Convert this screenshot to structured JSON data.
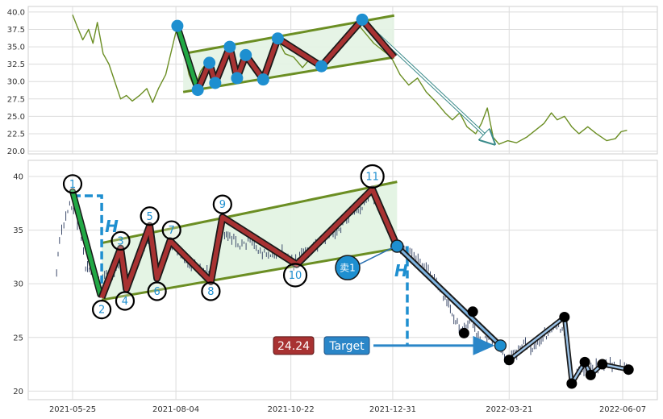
{
  "chart_data": [
    {
      "type": "line",
      "panel": "top",
      "ylim": [
        19.6,
        40.8
      ],
      "yticks": [
        "20.0",
        "22.5",
        "25.0",
        "27.5",
        "30.0",
        "32.5",
        "35.0",
        "37.5",
        "40.0"
      ],
      "ytick_values": [
        20.0,
        22.5,
        25.0,
        27.5,
        30.0,
        32.5,
        35.0,
        37.5,
        40.0
      ],
      "grid": true,
      "line_color": "#6b8e23",
      "price_series": [
        {
          "x": "2021-05-25",
          "y": 39.6
        },
        {
          "x": "2021-05-28",
          "y": 38.0
        },
        {
          "x": "2021-06-01",
          "y": 36.0
        },
        {
          "x": "2021-06-05",
          "y": 37.5
        },
        {
          "x": "2021-06-08",
          "y": 35.5
        },
        {
          "x": "2021-06-11",
          "y": 38.5
        },
        {
          "x": "2021-06-15",
          "y": 34.0
        },
        {
          "x": "2021-06-19",
          "y": 32.5
        },
        {
          "x": "2021-06-23",
          "y": 30.0
        },
        {
          "x": "2021-06-27",
          "y": 27.5
        },
        {
          "x": "2021-07-01",
          "y": 28.0
        },
        {
          "x": "2021-07-05",
          "y": 27.2
        },
        {
          "x": "2021-07-10",
          "y": 28.0
        },
        {
          "x": "2021-07-15",
          "y": 29.0
        },
        {
          "x": "2021-07-19",
          "y": 27.0
        },
        {
          "x": "2021-07-23",
          "y": 29.0
        },
        {
          "x": "2021-07-28",
          "y": 31.0
        },
        {
          "x": "2021-08-01",
          "y": 34.5
        },
        {
          "x": "2021-08-05",
          "y": 38.0
        },
        {
          "x": "2021-08-09",
          "y": 35.0
        },
        {
          "x": "2021-08-13",
          "y": 31.0
        },
        {
          "x": "2021-08-17",
          "y": 29.0
        },
        {
          "x": "2021-08-21",
          "y": 31.5
        },
        {
          "x": "2021-08-25",
          "y": 32.7
        },
        {
          "x": "2021-08-29",
          "y": 30.0
        },
        {
          "x": "2021-09-03",
          "y": 31.5
        },
        {
          "x": "2021-09-08",
          "y": 35.0
        },
        {
          "x": "2021-09-12",
          "y": 33.5
        },
        {
          "x": "2021-09-15",
          "y": 30.5
        },
        {
          "x": "2021-09-19",
          "y": 32.0
        },
        {
          "x": "2021-09-22",
          "y": 33.8
        },
        {
          "x": "2021-09-28",
          "y": 32.0
        },
        {
          "x": "2021-10-03",
          "y": 30.3
        },
        {
          "x": "2021-10-08",
          "y": 33.0
        },
        {
          "x": "2021-10-13",
          "y": 36.0
        },
        {
          "x": "2021-10-18",
          "y": 34.0
        },
        {
          "x": "2021-10-24",
          "y": 33.5
        },
        {
          "x": "2021-10-30",
          "y": 32.0
        },
        {
          "x": "2021-11-05",
          "y": 33.5
        },
        {
          "x": "2021-11-12",
          "y": 32.2
        },
        {
          "x": "2021-11-18",
          "y": 34.0
        },
        {
          "x": "2021-11-24",
          "y": 35.5
        },
        {
          "x": "2021-12-01",
          "y": 37.0
        },
        {
          "x": "2021-12-06",
          "y": 38.5
        },
        {
          "x": "2021-12-12",
          "y": 37.0
        },
        {
          "x": "2021-12-18",
          "y": 35.5
        },
        {
          "x": "2021-12-24",
          "y": 34.5
        },
        {
          "x": "2021-12-30",
          "y": 33.5
        },
        {
          "x": "2022-01-05",
          "y": 31.0
        },
        {
          "x": "2022-01-11",
          "y": 29.5
        },
        {
          "x": "2022-01-17",
          "y": 30.5
        },
        {
          "x": "2022-01-23",
          "y": 28.5
        },
        {
          "x": "2022-01-30",
          "y": 27.0
        },
        {
          "x": "2022-02-05",
          "y": 25.5
        },
        {
          "x": "2022-02-10",
          "y": 24.5
        },
        {
          "x": "2022-02-15",
          "y": 25.5
        },
        {
          "x": "2022-02-20",
          "y": 23.5
        },
        {
          "x": "2022-02-26",
          "y": 22.5
        },
        {
          "x": "2022-03-02",
          "y": 24.0
        },
        {
          "x": "2022-03-06",
          "y": 26.2
        },
        {
          "x": "2022-03-10",
          "y": 22.0
        },
        {
          "x": "2022-03-14",
          "y": 21.0
        },
        {
          "x": "2022-03-20",
          "y": 21.5
        },
        {
          "x": "2022-03-26",
          "y": 21.2
        },
        {
          "x": "2022-04-02",
          "y": 22.0
        },
        {
          "x": "2022-04-08",
          "y": 23.0
        },
        {
          "x": "2022-04-14",
          "y": 24.0
        },
        {
          "x": "2022-04-19",
          "y": 25.5
        },
        {
          "x": "2022-04-23",
          "y": 24.5
        },
        {
          "x": "2022-04-28",
          "y": 25.0
        },
        {
          "x": "2022-05-03",
          "y": 23.5
        },
        {
          "x": "2022-05-08",
          "y": 22.5
        },
        {
          "x": "2022-05-14",
          "y": 23.5
        },
        {
          "x": "2022-05-20",
          "y": 22.5
        },
        {
          "x": "2022-05-27",
          "y": 21.5
        },
        {
          "x": "2022-06-02",
          "y": 21.8
        },
        {
          "x": "2022-06-06",
          "y": 22.8
        },
        {
          "x": "2022-06-10",
          "y": 23.0
        }
      ],
      "channel_upper": [
        {
          "x": "2021-08-09",
          "y": 34.0
        },
        {
          "x": "2022-01-01",
          "y": 39.5
        }
      ],
      "channel_lower": [
        {
          "x": "2021-08-09",
          "y": 28.5
        },
        {
          "x": "2022-01-01",
          "y": 33.5
        }
      ],
      "impulse_leg": [
        {
          "x": "2021-08-05",
          "y": 38.0
        },
        {
          "x": "2021-08-19",
          "y": 28.8
        }
      ],
      "zigzag": [
        {
          "x": "2021-08-19",
          "y": 28.8
        },
        {
          "x": "2021-08-27",
          "y": 32.7
        },
        {
          "x": "2021-08-31",
          "y": 29.8
        },
        {
          "x": "2021-09-10",
          "y": 35.0
        },
        {
          "x": "2021-09-15",
          "y": 30.5
        },
        {
          "x": "2021-09-21",
          "y": 33.8
        },
        {
          "x": "2021-10-03",
          "y": 30.3
        },
        {
          "x": "2021-10-13",
          "y": 36.2
        },
        {
          "x": "2021-11-12",
          "y": 32.2
        },
        {
          "x": "2021-12-10",
          "y": 38.9
        },
        {
          "x": "2022-01-01",
          "y": 33.5
        }
      ],
      "markers": [
        {
          "x": "2021-08-05",
          "y": 38.0
        },
        {
          "x": "2021-08-19",
          "y": 28.8
        },
        {
          "x": "2021-08-27",
          "y": 32.7
        },
        {
          "x": "2021-08-31",
          "y": 29.8
        },
        {
          "x": "2021-09-10",
          "y": 35.0
        },
        {
          "x": "2021-09-15",
          "y": 30.5
        },
        {
          "x": "2021-09-21",
          "y": 33.8
        },
        {
          "x": "2021-10-03",
          "y": 30.3
        },
        {
          "x": "2021-10-13",
          "y": 36.2
        },
        {
          "x": "2021-11-12",
          "y": 32.2
        },
        {
          "x": "2021-12-10",
          "y": 38.9
        }
      ],
      "projection_arrow": [
        {
          "x": "2021-12-10",
          "y": 38.9
        },
        {
          "x": "2022-03-10",
          "y": 21.2
        }
      ]
    },
    {
      "type": "candlestick",
      "panel": "bottom",
      "ylim": [
        19.2,
        41.5
      ],
      "yticks": [
        "20",
        "25",
        "30",
        "35",
        "40"
      ],
      "ytick_values": [
        20,
        25,
        30,
        35,
        40
      ],
      "xticks": [
        "2021-05-25",
        "2021-08-04",
        "2021-10-22",
        "2021-12-31",
        "2022-03-21",
        "2022-06-07"
      ],
      "grid": true,
      "channel_upper": [
        {
          "x": "2021-06-14",
          "y": 33.8
        },
        {
          "x": "2022-01-03",
          "y": 39.5
        }
      ],
      "channel_lower": [
        {
          "x": "2021-06-14",
          "y": 28.5
        },
        {
          "x": "2022-01-03",
          "y": 33.3
        }
      ],
      "impulse_leg": [
        {
          "x": "2021-05-25",
          "y": 38.6
        },
        {
          "x": "2021-06-13",
          "y": 29.0
        }
      ],
      "pivots": [
        {
          "label": "1",
          "x": "2021-05-25",
          "y": 38.5,
          "lx": "2021-05-25",
          "ly": 39.3
        },
        {
          "label": "2",
          "x": "2021-06-14",
          "y": 28.7,
          "lx": "2021-06-14",
          "ly": 27.6
        },
        {
          "label": "3",
          "x": "2021-06-27",
          "y": 33.3,
          "lx": "2021-06-27",
          "ly": 34.0
        },
        {
          "label": "4",
          "x": "2021-07-01",
          "y": 29.5,
          "lx": "2021-06-30",
          "ly": 28.4
        },
        {
          "label": "5",
          "x": "2021-07-17",
          "y": 35.4,
          "lx": "2021-07-17",
          "ly": 36.3
        },
        {
          "label": "6",
          "x": "2021-07-22",
          "y": 30.5,
          "lx": "2021-07-22",
          "ly": 29.3
        },
        {
          "label": "7",
          "x": "2021-07-31",
          "y": 34.0,
          "lx": "2021-08-01",
          "ly": 35.0
        },
        {
          "label": "8",
          "x": "2021-08-28",
          "y": 30.2,
          "lx": "2021-08-28",
          "ly": 29.3
        },
        {
          "label": "9",
          "x": "2021-09-05",
          "y": 36.2,
          "lx": "2021-09-05",
          "ly": 37.4
        },
        {
          "label": "10",
          "x": "2021-10-26",
          "y": 31.8,
          "lx": "2021-10-25",
          "ly": 30.8
        },
        {
          "label": "11",
          "x": "2021-12-17",
          "y": 38.8,
          "lx": "2021-12-17",
          "ly": 40.0
        }
      ],
      "sell_point": {
        "label": "卖1",
        "x": "2022-01-03",
        "y": 33.5,
        "badge_x": "2021-11-30",
        "badge_y": 31.5
      },
      "target_price": {
        "label": "Target",
        "value": "24.24",
        "x": "2022-03-15",
        "y": 24.24
      },
      "height_label": "H",
      "h_bracket": {
        "top": 38.2,
        "bottom": 28.6,
        "x": "2021-06-14"
      },
      "h_projection": {
        "top": 33.5,
        "bottom": 24.24,
        "x": "2022-01-10"
      },
      "post_breakout_path": [
        {
          "x": "2022-01-03",
          "y": 33.5
        },
        {
          "x": "2022-03-15",
          "y": 24.24
        }
      ],
      "black_markers": [
        {
          "x": "2022-02-18",
          "y": 25.4
        },
        {
          "x": "2022-02-24",
          "y": 27.4
        },
        {
          "x": "2022-03-21",
          "y": 22.9
        },
        {
          "x": "2022-04-28",
          "y": 26.9
        },
        {
          "x": "2022-05-03",
          "y": 20.7
        },
        {
          "x": "2022-05-12",
          "y": 22.7
        },
        {
          "x": "2022-05-16",
          "y": 21.5
        },
        {
          "x": "2022-05-24",
          "y": 22.5
        },
        {
          "x": "2022-06-11",
          "y": 22.0
        }
      ],
      "black_path": [
        {
          "x": "2022-03-21",
          "y": 22.9
        },
        {
          "x": "2022-04-28",
          "y": 26.9
        },
        {
          "x": "2022-05-03",
          "y": 20.7
        },
        {
          "x": "2022-05-12",
          "y": 22.7
        },
        {
          "x": "2022-05-16",
          "y": 21.5
        },
        {
          "x": "2022-05-24",
          "y": 22.5
        },
        {
          "x": "2022-06-11",
          "y": 22.0
        }
      ],
      "close_path": [
        {
          "x": "2021-05-14",
          "y": 31.0
        },
        {
          "x": "2021-05-16",
          "y": 34.0
        },
        {
          "x": "2021-05-19",
          "y": 35.5
        },
        {
          "x": "2021-05-23",
          "y": 37.5
        },
        {
          "x": "2021-05-27",
          "y": 36.5
        },
        {
          "x": "2021-05-31",
          "y": 34.5
        },
        {
          "x": "2021-06-03",
          "y": 31.5
        },
        {
          "x": "2021-06-08",
          "y": 31.0
        },
        {
          "x": "2021-06-12",
          "y": 30.0
        },
        {
          "x": "2021-06-16",
          "y": 31.0
        },
        {
          "x": "2021-06-20",
          "y": 30.5
        },
        {
          "x": "2021-06-24",
          "y": 31.5
        },
        {
          "x": "2021-06-28",
          "y": 32.5
        },
        {
          "x": "2021-07-02",
          "y": 30.5
        },
        {
          "x": "2021-07-07",
          "y": 31.5
        },
        {
          "x": "2021-07-12",
          "y": 33.0
        },
        {
          "x": "2021-07-17",
          "y": 34.5
        },
        {
          "x": "2021-07-21",
          "y": 31.0
        },
        {
          "x": "2021-07-25",
          "y": 32.0
        },
        {
          "x": "2021-07-30",
          "y": 33.5
        },
        {
          "x": "2021-08-05",
          "y": 33.0
        },
        {
          "x": "2021-08-11",
          "y": 32.0
        },
        {
          "x": "2021-08-17",
          "y": 31.5
        },
        {
          "x": "2021-08-23",
          "y": 31.0
        },
        {
          "x": "2021-08-29",
          "y": 31.0
        },
        {
          "x": "2021-09-04",
          "y": 35.0
        },
        {
          "x": "2021-09-10",
          "y": 34.5
        },
        {
          "x": "2021-09-17",
          "y": 33.5
        },
        {
          "x": "2021-09-24",
          "y": 34.0
        },
        {
          "x": "2021-10-01",
          "y": 33.0
        },
        {
          "x": "2021-10-08",
          "y": 32.5
        },
        {
          "x": "2021-10-16",
          "y": 33.0
        },
        {
          "x": "2021-10-24",
          "y": 32.0
        },
        {
          "x": "2021-11-01",
          "y": 33.0
        },
        {
          "x": "2021-11-08",
          "y": 33.5
        },
        {
          "x": "2021-11-16",
          "y": 34.5
        },
        {
          "x": "2021-11-24",
          "y": 35.0
        },
        {
          "x": "2021-12-02",
          "y": 36.5
        },
        {
          "x": "2021-12-10",
          "y": 37.0
        },
        {
          "x": "2021-12-17",
          "y": 38.5
        },
        {
          "x": "2021-12-23",
          "y": 37.0
        },
        {
          "x": "2021-12-29",
          "y": 35.0
        },
        {
          "x": "2022-01-03",
          "y": 33.5
        },
        {
          "x": "2022-01-09",
          "y": 33.0
        },
        {
          "x": "2022-01-16",
          "y": 32.5
        },
        {
          "x": "2022-01-23",
          "y": 31.5
        },
        {
          "x": "2022-01-30",
          "y": 30.0
        },
        {
          "x": "2022-02-05",
          "y": 28.5
        },
        {
          "x": "2022-02-11",
          "y": 27.0
        },
        {
          "x": "2022-02-17",
          "y": 25.5
        },
        {
          "x": "2022-02-23",
          "y": 26.5
        },
        {
          "x": "2022-03-01",
          "y": 24.5
        },
        {
          "x": "2022-03-07",
          "y": 25.0
        },
        {
          "x": "2022-03-13",
          "y": 24.0
        },
        {
          "x": "2022-03-19",
          "y": 23.0
        },
        {
          "x": "2022-03-25",
          "y": 23.5
        },
        {
          "x": "2022-03-31",
          "y": 24.5
        },
        {
          "x": "2022-04-06",
          "y": 24.0
        },
        {
          "x": "2022-04-12",
          "y": 25.0
        },
        {
          "x": "2022-04-18",
          "y": 25.5
        },
        {
          "x": "2022-04-24",
          "y": 26.0
        },
        {
          "x": "2022-04-29",
          "y": 25.0
        },
        {
          "x": "2022-05-03",
          "y": 21.0
        },
        {
          "x": "2022-05-09",
          "y": 22.0
        },
        {
          "x": "2022-05-15",
          "y": 22.0
        },
        {
          "x": "2022-05-21",
          "y": 22.5
        },
        {
          "x": "2022-05-28",
          "y": 22.5
        },
        {
          "x": "2022-06-04",
          "y": 22.3
        },
        {
          "x": "2022-06-11",
          "y": 22.0
        }
      ]
    }
  ],
  "colors": {
    "channel_fill": "#e3f3e3",
    "channel_line": "#6b8e23",
    "impulse": "#22a845",
    "zigzag": "#a83232",
    "marker": "#1e8fd0",
    "candle": "#3d4b6b",
    "target_box": "#2a86c8",
    "value_box": "#a83232",
    "h_color": "#1e8fd0"
  }
}
